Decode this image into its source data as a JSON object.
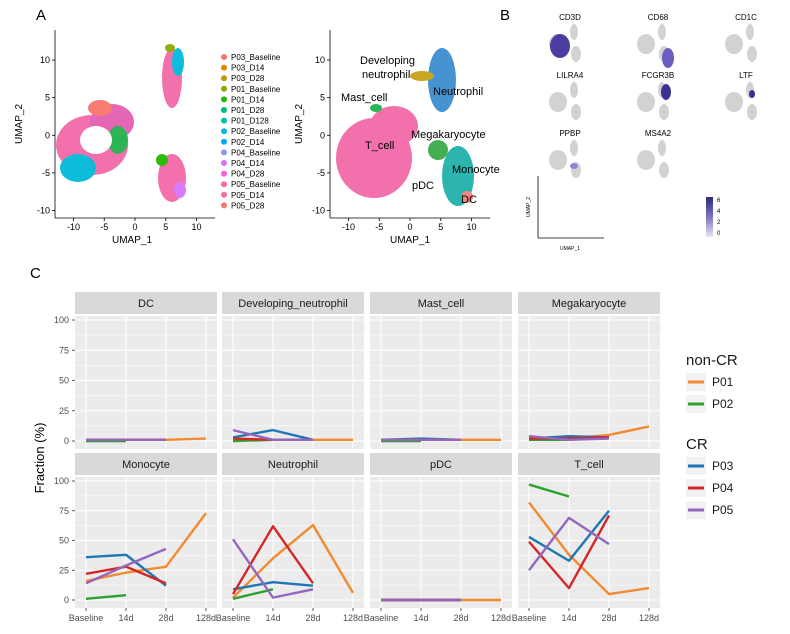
{
  "panels": {
    "a": "A",
    "b": "B",
    "c": "C"
  },
  "panel_a": {
    "left": {
      "xlabel": "UMAP_1",
      "ylabel": "UMAP_2",
      "xticks": [
        "-10",
        "-5",
        "0",
        "5",
        "10"
      ],
      "yticks": [
        "10",
        "5",
        "0",
        "-5",
        "-10"
      ]
    },
    "right": {
      "xlabel": "UMAP_1",
      "ylabel": "UMAP_2",
      "xticks": [
        "-10",
        "-5",
        "0",
        "5",
        "10"
      ],
      "yticks": [
        "10",
        "5",
        "0",
        "-5",
        "-10"
      ],
      "cluster_labels": [
        "Developing neutrophil",
        "Neutrophil",
        "Mast_cell",
        "Megakaryocyte",
        "T_cell",
        "Monocyte",
        "pDC",
        "DC"
      ]
    },
    "legend": [
      {
        "label": "P03_Baseline",
        "color": "#F8766D"
      },
      {
        "label": "P03_D14",
        "color": "#E18A00"
      },
      {
        "label": "P03_D28",
        "color": "#BE9C00"
      },
      {
        "label": "P01_Baseline",
        "color": "#8CAB00"
      },
      {
        "label": "P01_D14",
        "color": "#24B700"
      },
      {
        "label": "P01_D28",
        "color": "#00BE70"
      },
      {
        "label": "P01_D128",
        "color": "#00C1AB"
      },
      {
        "label": "P02_Baseline",
        "color": "#00BBDA"
      },
      {
        "label": "P02_D14",
        "color": "#00ACFC"
      },
      {
        "label": "P04_Baseline",
        "color": "#8B93FF"
      },
      {
        "label": "P04_D14",
        "color": "#D575FE"
      },
      {
        "label": "P04_D28",
        "color": "#F962DD"
      },
      {
        "label": "P05_Baseline",
        "color": "#FF65AC"
      },
      {
        "label": "P05_D14",
        "color": "#FF6C91"
      },
      {
        "label": "P05_D28",
        "color": "#F8766D"
      }
    ]
  },
  "panel_b": {
    "genes": [
      "CD3D",
      "CD68",
      "CD1C",
      "LILRA4",
      "FCGR3B",
      "LTF",
      "PPBP",
      "MS4A2"
    ],
    "xlabel": "UMAP_1",
    "ylabel": "UMAP_2",
    "scale_ticks": [
      "6",
      "4",
      "2",
      "0"
    ]
  },
  "chart_data": {
    "type": "line",
    "ylabel": "Fraction (%)",
    "categories": [
      "Baseline",
      "14d",
      "28d",
      "128d"
    ],
    "ylim": [
      0,
      100
    ],
    "yticks": [
      "100",
      "75",
      "50",
      "25",
      "0"
    ],
    "legend_groups": [
      {
        "title": "non-CR",
        "items": [
          {
            "name": "P01",
            "color": "#F28A30"
          },
          {
            "name": "P02",
            "color": "#2CA02C"
          }
        ]
      },
      {
        "title": "CR",
        "items": [
          {
            "name": "P03",
            "color": "#1F77B4"
          },
          {
            "name": "P04",
            "color": "#D62728"
          },
          {
            "name": "P05",
            "color": "#9467BD"
          }
        ]
      }
    ],
    "facets": [
      {
        "title": "DC",
        "series": [
          {
            "name": "P01",
            "values": [
              1,
              1,
              1,
              2
            ]
          },
          {
            "name": "P02",
            "values": [
              0,
              0,
              null,
              null
            ]
          },
          {
            "name": "P03",
            "values": [
              1,
              1,
              1,
              null
            ]
          },
          {
            "name": "P04",
            "values": [
              1,
              1,
              1,
              null
            ]
          },
          {
            "name": "P05",
            "values": [
              1,
              1,
              1,
              null
            ]
          }
        ]
      },
      {
        "title": "Developing_neutrophil",
        "series": [
          {
            "name": "P01",
            "values": [
              1,
              1,
              1,
              1
            ]
          },
          {
            "name": "P02",
            "values": [
              0,
              1,
              null,
              null
            ]
          },
          {
            "name": "P03",
            "values": [
              3,
              9,
              1,
              null
            ]
          },
          {
            "name": "P04",
            "values": [
              2,
              1,
              1,
              null
            ]
          },
          {
            "name": "P05",
            "values": [
              9,
              1,
              1,
              null
            ]
          }
        ]
      },
      {
        "title": "Mast_cell",
        "series": [
          {
            "name": "P01",
            "values": [
              1,
              1,
              1,
              1
            ]
          },
          {
            "name": "P02",
            "values": [
              0,
              0,
              null,
              null
            ]
          },
          {
            "name": "P03",
            "values": [
              1,
              2,
              1,
              null
            ]
          },
          {
            "name": "P04",
            "values": [
              1,
              1,
              1,
              null
            ]
          },
          {
            "name": "P05",
            "values": [
              1,
              1,
              1,
              null
            ]
          }
        ]
      },
      {
        "title": "Megakaryocyte",
        "series": [
          {
            "name": "P01",
            "values": [
              1,
              2,
              5,
              12
            ]
          },
          {
            "name": "P02",
            "values": [
              1,
              1,
              null,
              null
            ]
          },
          {
            "name": "P03",
            "values": [
              2,
              4,
              3,
              null
            ]
          },
          {
            "name": "P04",
            "values": [
              2,
              2,
              3,
              null
            ]
          },
          {
            "name": "P05",
            "values": [
              4,
              1,
              2,
              null
            ]
          }
        ]
      },
      {
        "title": "Monocyte",
        "series": [
          {
            "name": "P01",
            "values": [
              16,
              23,
              28,
              73
            ]
          },
          {
            "name": "P02",
            "values": [
              1,
              4,
              null,
              null
            ]
          },
          {
            "name": "P03",
            "values": [
              36,
              38,
              12,
              null
            ]
          },
          {
            "name": "P04",
            "values": [
              22,
              28,
              14,
              null
            ]
          },
          {
            "name": "P05",
            "values": [
              14,
              29,
              43,
              null
            ]
          }
        ]
      },
      {
        "title": "Neutrophil",
        "series": [
          {
            "name": "P01",
            "values": [
              2,
              35,
              63,
              6
            ]
          },
          {
            "name": "P02",
            "values": [
              1,
              9,
              null,
              null
            ]
          },
          {
            "name": "P03",
            "values": [
              9,
              15,
              12,
              null
            ]
          },
          {
            "name": "P04",
            "values": [
              5,
              62,
              14,
              null
            ]
          },
          {
            "name": "P05",
            "values": [
              51,
              2,
              9,
              null
            ]
          }
        ]
      },
      {
        "title": "pDC",
        "series": [
          {
            "name": "P01",
            "values": [
              0,
              0,
              0,
              0
            ]
          },
          {
            "name": "P02",
            "values": [
              0,
              0,
              null,
              null
            ]
          },
          {
            "name": "P03",
            "values": [
              0,
              0,
              0,
              null
            ]
          },
          {
            "name": "P04",
            "values": [
              0,
              0,
              0,
              null
            ]
          },
          {
            "name": "P05",
            "values": [
              0,
              0,
              0,
              null
            ]
          }
        ]
      },
      {
        "title": "T_cell",
        "series": [
          {
            "name": "P01",
            "values": [
              82,
              38,
              5,
              10
            ]
          },
          {
            "name": "P02",
            "values": [
              97,
              87,
              null,
              null
            ]
          },
          {
            "name": "P03",
            "values": [
              53,
              33,
              75,
              null
            ]
          },
          {
            "name": "P04",
            "values": [
              49,
              10,
              71,
              null
            ]
          },
          {
            "name": "P05",
            "values": [
              25,
              69,
              47,
              null
            ]
          }
        ]
      }
    ]
  }
}
